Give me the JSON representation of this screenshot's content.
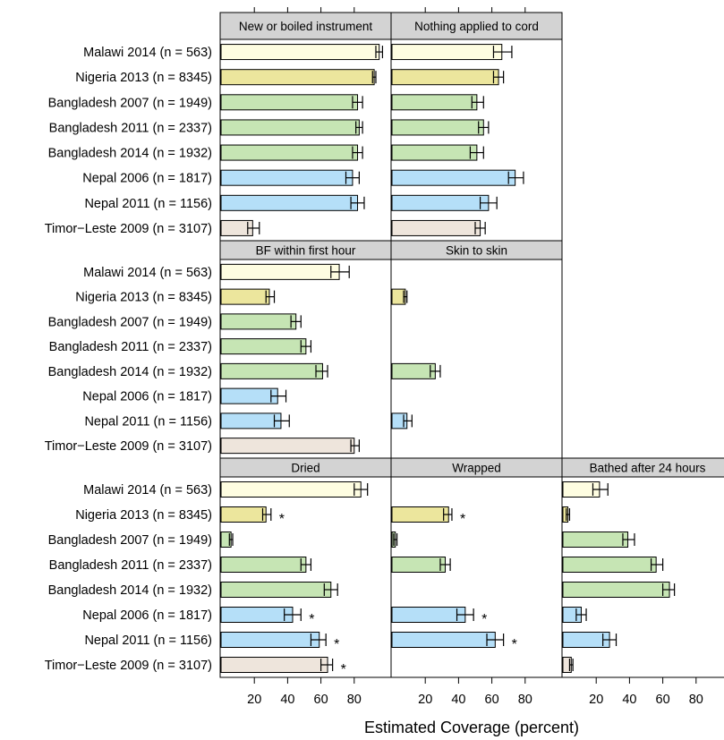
{
  "chart_data": {
    "type": "bar",
    "orientation": "horizontal",
    "xlabel": "Estimated Coverage (percent)",
    "xlim": [
      0,
      95
    ],
    "x_ticks": [
      20,
      40,
      60,
      80
    ],
    "grid": false,
    "colors": {
      "Malawi": "#fefde1",
      "Nigeria": "#ece69d",
      "Bangladesh": "#c6e5b4",
      "Nepal": "#b5dff8",
      "Timor-Leste": "#eee5dc"
    },
    "categories": [
      {
        "label": "Malawi 2014 (n = 563)",
        "country": "Malawi"
      },
      {
        "label": "Nigeria 2013 (n = 8345)",
        "country": "Nigeria"
      },
      {
        "label": "Bangladesh 2007 (n = 1949)",
        "country": "Bangladesh"
      },
      {
        "label": "Bangladesh 2011 (n = 2337)",
        "country": "Bangladesh"
      },
      {
        "label": "Bangladesh 2014 (n = 1932)",
        "country": "Bangladesh"
      },
      {
        "label": "Nepal 2006 (n = 1817)",
        "country": "Nepal"
      },
      {
        "label": "Nepal 2011 (n = 1156)",
        "country": "Nepal"
      },
      {
        "label": "Timor−Leste 2009 (n = 3107)",
        "country": "Timor-Leste"
      }
    ],
    "panels": [
      {
        "title": "New or boiled instrument",
        "row": 0,
        "col": 0,
        "values": [
          95,
          92,
          82,
          83,
          82,
          79,
          82,
          19
        ],
        "lower": [
          93,
          91,
          79,
          81,
          79,
          75,
          78,
          16
        ],
        "upper": [
          97,
          93,
          85,
          85,
          85,
          83,
          86,
          23
        ],
        "flag": [
          false,
          false,
          false,
          false,
          false,
          false,
          false,
          false
        ]
      },
      {
        "title": "Nothing applied to cord",
        "row": 0,
        "col": 1,
        "values": [
          66,
          64,
          51,
          55,
          51,
          74,
          58,
          53
        ],
        "lower": [
          61,
          61,
          48,
          52,
          47,
          70,
          53,
          50
        ],
        "upper": [
          72,
          67,
          55,
          58,
          55,
          79,
          63,
          56
        ],
        "flag": [
          false,
          false,
          false,
          false,
          false,
          false,
          false,
          false
        ]
      },
      {
        "title": "BF within first hour",
        "row": 1,
        "col": 0,
        "values": [
          71,
          29,
          45,
          51,
          61,
          34,
          36,
          80
        ],
        "lower": [
          66,
          27,
          42,
          48,
          57,
          30,
          32,
          78
        ],
        "upper": [
          77,
          32,
          48,
          54,
          64,
          39,
          41,
          83
        ],
        "flag": [
          false,
          false,
          false,
          false,
          false,
          false,
          false,
          false
        ]
      },
      {
        "title": "Skin to skin",
        "row": 1,
        "col": 1,
        "values": [
          null,
          8,
          null,
          null,
          26,
          null,
          9,
          null
        ],
        "lower": [
          null,
          7,
          null,
          null,
          23,
          null,
          7,
          null
        ],
        "upper": [
          null,
          9,
          null,
          null,
          29,
          null,
          12,
          null
        ],
        "flag": [
          false,
          false,
          false,
          false,
          false,
          false,
          false,
          false
        ]
      },
      {
        "title": "Dried",
        "row": 2,
        "col": 0,
        "values": [
          84,
          27,
          6,
          51,
          66,
          43,
          59,
          64
        ],
        "lower": [
          80,
          25,
          5,
          48,
          62,
          38,
          54,
          60
        ],
        "upper": [
          88,
          30,
          7,
          54,
          70,
          48,
          63,
          67
        ],
        "flag": [
          false,
          true,
          false,
          false,
          false,
          true,
          true,
          true
        ]
      },
      {
        "title": "Wrapped",
        "row": 2,
        "col": 1,
        "values": [
          null,
          34,
          2,
          32,
          null,
          44,
          62,
          null
        ],
        "lower": [
          null,
          31,
          1,
          29,
          null,
          39,
          57,
          null
        ],
        "upper": [
          null,
          36,
          3,
          35,
          null,
          49,
          67,
          null
        ],
        "flag": [
          false,
          true,
          false,
          false,
          false,
          true,
          true,
          false
        ]
      },
      {
        "title": "Bathed after 24 hours",
        "row": 2,
        "col": 2,
        "values": [
          22,
          3,
          39,
          56,
          64,
          11,
          28,
          5
        ],
        "lower": [
          18,
          2,
          36,
          53,
          60,
          8,
          24,
          4
        ],
        "upper": [
          27,
          4,
          43,
          60,
          67,
          14,
          32,
          6
        ],
        "flag": [
          false,
          false,
          false,
          false,
          false,
          false,
          false,
          false
        ]
      }
    ],
    "flag_symbol": "*"
  }
}
